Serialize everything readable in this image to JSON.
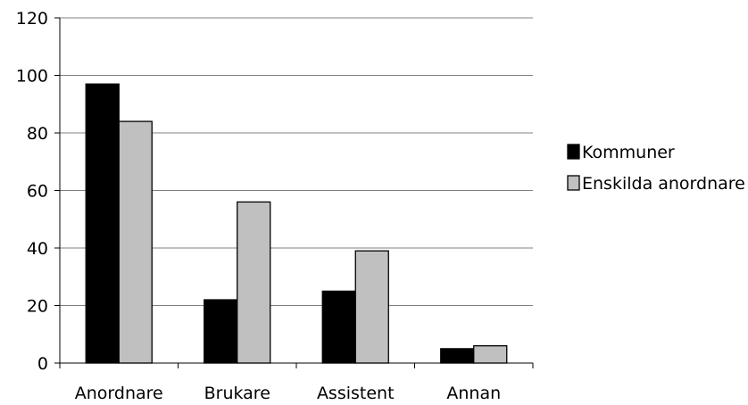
{
  "chart_data": {
    "type": "bar",
    "categories": [
      "Anordnare",
      "Brukare",
      "Assistent",
      "Annan"
    ],
    "series": [
      {
        "name": "Kommuner",
        "values": [
          97,
          22,
          25,
          5
        ],
        "color": "#000000"
      },
      {
        "name": "Enskilda anordnare",
        "values": [
          84,
          56,
          39,
          6
        ],
        "color": "#c0c0c0"
      }
    ],
    "ylim": [
      0,
      120
    ],
    "yticks": [
      0,
      20,
      40,
      60,
      80,
      100,
      120
    ],
    "grid": true,
    "legend_position": "right"
  }
}
